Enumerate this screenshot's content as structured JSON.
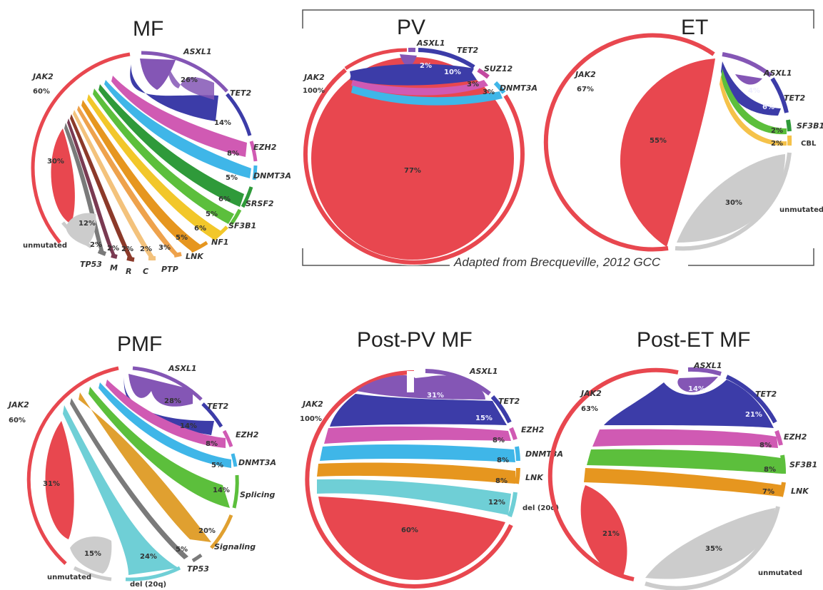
{
  "source_note": "Adapted from Brecqueville, 2012 GCC",
  "colors": {
    "jak2": "#e8474f",
    "asxl1": "#8456b5",
    "tet2": "#3c3ca8",
    "ezh2": "#d05ab3",
    "dnmt3a": "#3fb6e8",
    "srsf2": "#2f9a3a",
    "sf3b1": "#5cbf3c",
    "nf1": "#f2c72a",
    "lnk": "#e6961f",
    "ptp": "#eea24c",
    "c": "#f3c27c",
    "r": "#8c3a2a",
    "m": "#7a3a52",
    "tp53": "#7a7a7a",
    "unmutated": "#cccccc",
    "suz12": "#c24aa0",
    "cbl": "#f5c24a",
    "del20q": "#6fcfd6",
    "splicing": "#5cbf3c",
    "signaling": "#e0a030"
  },
  "panels": {
    "mf": {
      "title": "MF",
      "labels": {
        "jak2": "JAK2",
        "jak2_pct": "60%",
        "asxl1": "ASXL1",
        "asxl1_pct": "26%",
        "tet2": "TET2",
        "tet2_pct": "14%",
        "ezh2": "EZH2",
        "ezh2_pct": "8%",
        "dnmt3a": "DNMT3A",
        "dnmt3a_pct": "5%",
        "srsf2": "SRSF2",
        "srsf2_pct": "6%",
        "sf3b1": "SF3B1",
        "sf3b1_pct": "5%",
        "nf1": "NF1",
        "nf1_pct": "6%",
        "lnk": "LNK",
        "lnk_pct": "5%",
        "ptp": "PTP",
        "ptp_pct": "3%",
        "c": "C",
        "c_pct": "2%",
        "r": "R",
        "r_pct": "2%",
        "m": "M",
        "m_pct": "2%",
        "tp53": "TP53",
        "tp53_pct": "2%",
        "unmutated": "unmutated",
        "unmutated_pct": "12%",
        "jak2_only_pct": "30%"
      }
    },
    "pv": {
      "title": "PV",
      "labels": {
        "jak2": "JAK2",
        "jak2_pct": "100%",
        "asxl1": "ASXL1",
        "asxl1_pct": "2%",
        "tet2": "TET2",
        "tet2_pct": "10%",
        "suz12": "SUZ12",
        "suz12_pct": "3%",
        "dnmt3a": "DNMT3A",
        "dnmt3a_pct": "3%",
        "jak2_only_pct": "77%"
      }
    },
    "et": {
      "title": "ET",
      "labels": {
        "jak2": "JAK2",
        "jak2_pct": "67%",
        "asxl1": "ASXL1",
        "asxl1_pct": "4%",
        "tet2": "TET2",
        "tet2_pct": "6%",
        "sf3b1": "SF3B1",
        "sf3b1_pct": "2%",
        "cbl": "CBL",
        "cbl_pct": "2%",
        "unmutated": "unmutated",
        "unmutated_pct": "30%",
        "jak2_only_pct": "55%"
      }
    },
    "pmf": {
      "title": "PMF",
      "labels": {
        "jak2": "JAK2",
        "jak2_pct": "60%",
        "asxl1": "ASXL1",
        "asxl1_pct": "28%",
        "tet2": "TET2",
        "tet2_pct": "14%",
        "ezh2": "EZH2",
        "ezh2_pct": "8%",
        "dnmt3a": "DNMT3A",
        "dnmt3a_pct": "5%",
        "splicing": "Splicing",
        "splicing_pct": "14%",
        "signaling": "Signaling",
        "signaling_pct": "20%",
        "tp53": "TP53",
        "tp53_pct": "5%",
        "del20q": "del (20q)",
        "del20q_pct": "24%",
        "unmutated": "unmutated",
        "unmutated_pct": "15%",
        "jak2_only_pct": "31%"
      }
    },
    "postpv": {
      "title": "Post-PV MF",
      "labels": {
        "jak2": "JAK2",
        "jak2_pct": "100%",
        "asxl1": "ASXL1",
        "asxl1_pct": "31%",
        "tet2": "TET2",
        "tet2_pct": "15%",
        "ezh2": "EZH2",
        "ezh2_pct": "8%",
        "dnmt3a": "DNMT3A",
        "dnmt3a_pct": "8%",
        "lnk": "LNK",
        "lnk_pct": "8%",
        "del20q": "del (20q)",
        "del20q_pct": "12%",
        "jak2_only_pct": "60%"
      }
    },
    "postet": {
      "title": "Post-ET MF",
      "labels": {
        "jak2": "JAK2",
        "jak2_pct": "63%",
        "asxl1": "ASXL1",
        "asxl1_pct": "14%",
        "tet2": "TET2",
        "tet2_pct": "21%",
        "ezh2": "EZH2",
        "ezh2_pct": "8%",
        "sf3b1": "SF3B1",
        "sf3b1_pct": "8%",
        "lnk": "LNK",
        "lnk_pct": "7%",
        "unmutated": "unmutated",
        "unmutated_pct": "35%",
        "jak2_only_pct": "21%"
      }
    }
  }
}
